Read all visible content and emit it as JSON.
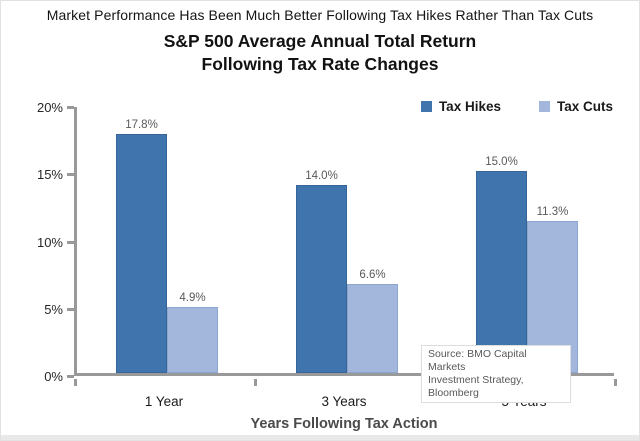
{
  "header": {
    "headline": "Market Performance Has Been Much Better Following Tax Hikes Rather Than Tax Cuts",
    "title_line1": "S&P 500 Average Annual Total Return",
    "title_line2": "Following Tax Rate Changes"
  },
  "chart_data": {
    "type": "bar",
    "title": "S&P 500 Average Annual Total Return Following Tax Rate Changes",
    "categories": [
      "1 Year",
      "3 Years",
      "5 Years"
    ],
    "series": [
      {
        "name": "Tax Hikes",
        "values": [
          17.8,
          14.0,
          15.0
        ],
        "labels": [
          "17.8%",
          "14.0%",
          "15.0%"
        ],
        "color": "#3f74ad"
      },
      {
        "name": "Tax Cuts",
        "values": [
          4.9,
          6.6,
          11.3
        ],
        "labels": [
          "4.9%",
          "6.6%",
          "11.3%"
        ],
        "color": "#a2b7db"
      }
    ],
    "xlabel": "Years Following Tax Action",
    "ylabel": "",
    "ylim": [
      0,
      20
    ],
    "ytick_values": [
      0,
      5,
      10,
      15,
      20
    ],
    "ytick_labels": [
      "0%",
      "5%",
      "10%",
      "15%",
      "20%"
    ],
    "grid": false,
    "legend_position": "top-right",
    "source_line1": "Source: BMO Capital Markets",
    "source_line2": "Investment Strategy, Bloomberg"
  }
}
